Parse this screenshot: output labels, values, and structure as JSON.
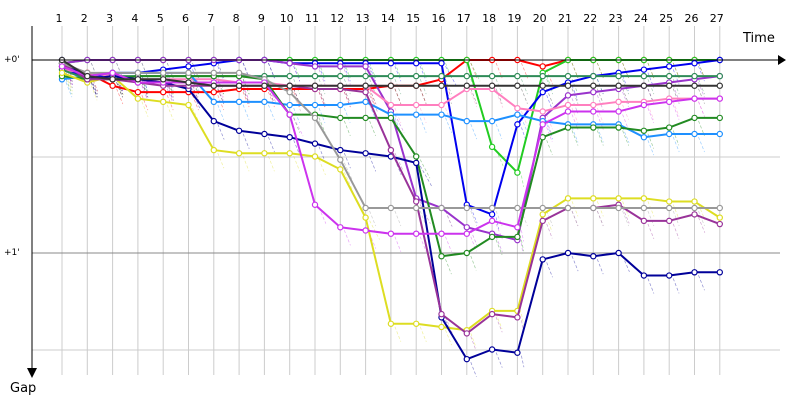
{
  "chart_data": {
    "type": "line",
    "title": "",
    "xlabel": "Time",
    "ylabel": "Gap",
    "x": [
      1,
      2,
      3,
      4,
      5,
      6,
      7,
      8,
      9,
      10,
      11,
      12,
      13,
      14,
      15,
      16,
      17,
      18,
      19,
      20,
      21,
      22,
      23,
      24,
      25,
      26,
      27
    ],
    "x_tick_labels": [
      "1",
      "2",
      "3",
      "4",
      "5",
      "6",
      "7",
      "8",
      "9",
      "10",
      "11",
      "12",
      "13",
      "14",
      "15",
      "16",
      "17",
      "18",
      "19",
      "20",
      "21",
      "22",
      "23",
      "24",
      "25",
      "26",
      "27"
    ],
    "y_tick_labels": [
      "+0'",
      "+1'"
    ],
    "y_ticks": [
      0,
      60
    ],
    "ylim": [
      -2,
      97
    ],
    "y_inverted": true,
    "grid": true,
    "series": [
      {
        "color": "#ff0000",
        "values": [
          2,
          4,
          8,
          10,
          10,
          10,
          10,
          9,
          9,
          9,
          9,
          9,
          9,
          8,
          8,
          6,
          0,
          0,
          0,
          2,
          0,
          0,
          0,
          0,
          0,
          0,
          0
        ]
      },
      {
        "color": "#22cc22",
        "values": [
          1,
          0,
          0,
          0,
          0,
          0,
          0,
          0,
          0,
          0,
          0,
          0,
          0,
          0,
          0,
          0,
          0,
          27,
          35,
          4,
          0,
          0,
          0,
          0,
          0,
          0,
          0
        ]
      },
      {
        "color": "#0000ee",
        "values": [
          2,
          6,
          4,
          4,
          3,
          2,
          1,
          0,
          0,
          1,
          1,
          1,
          1,
          1,
          1,
          1,
          45,
          48,
          20,
          10,
          7,
          5,
          4,
          3,
          2,
          1,
          0
        ]
      },
      {
        "color": "#9933cc",
        "values": [
          1,
          0,
          0,
          0,
          0,
          0,
          0,
          0,
          0,
          1,
          2,
          2,
          2,
          16,
          43,
          46,
          52,
          54,
          56,
          18,
          11,
          10,
          9,
          8,
          7,
          6,
          5
        ]
      },
      {
        "color": "#ff7fbf",
        "values": [
          3,
          4,
          5,
          6,
          6,
          6,
          6,
          7,
          7,
          8,
          8,
          8,
          8,
          14,
          14,
          14,
          9,
          9,
          15,
          16,
          14,
          14,
          13,
          13,
          12,
          12,
          12
        ]
      },
      {
        "color": "#1e90ff",
        "values": [
          6,
          5,
          4,
          4,
          4,
          4,
          13,
          13,
          13,
          14,
          14,
          14,
          13,
          17,
          17,
          17,
          19,
          19,
          17,
          19,
          20,
          20,
          20,
          24,
          23,
          23,
          23
        ]
      },
      {
        "color": "#2e8b57",
        "values": [
          3,
          6,
          5,
          5,
          5,
          5,
          5,
          5,
          5,
          5,
          5,
          5,
          5,
          5,
          5,
          5,
          5,
          5,
          5,
          5,
          5,
          5,
          5,
          5,
          5,
          5,
          5
        ]
      },
      {
        "color": "#228b22",
        "values": [
          5,
          6,
          6,
          5,
          5,
          5,
          5,
          5,
          6,
          17,
          17,
          18,
          18,
          18,
          30,
          61,
          60,
          55,
          55,
          24,
          21,
          21,
          21,
          22,
          21,
          18,
          18
        ]
      },
      {
        "color": "#dddd22",
        "values": [
          4,
          7,
          5,
          12,
          13,
          14,
          28,
          29,
          29,
          29,
          30,
          34,
          49,
          82,
          82,
          83,
          84,
          78,
          78,
          48,
          43,
          43,
          43,
          43,
          44,
          44,
          49
        ]
      },
      {
        "color": "#000099",
        "values": [
          0,
          6,
          5,
          6,
          7,
          9,
          19,
          22,
          23,
          24,
          26,
          28,
          29,
          30,
          32,
          80,
          93,
          90,
          91,
          62,
          60,
          61,
          60,
          67,
          67,
          66,
          66
        ]
      },
      {
        "color": "#993399",
        "values": [
          1,
          6,
          6,
          7,
          8,
          8,
          8,
          8,
          8,
          8,
          9,
          9,
          10,
          28,
          44,
          79,
          85,
          79,
          80,
          50,
          46,
          46,
          45,
          50,
          50,
          48,
          51
        ]
      },
      {
        "color": "#999999",
        "values": [
          1,
          4,
          4,
          4,
          4,
          4,
          4,
          4,
          6,
          10,
          18,
          31,
          46,
          46,
          46,
          46,
          46,
          46,
          46,
          46,
          46,
          46,
          46,
          46,
          46,
          46,
          46
        ]
      },
      {
        "color": "#cc33ee",
        "values": [
          2,
          5,
          4,
          7,
          7,
          7,
          7,
          7,
          7,
          17,
          45,
          52,
          53,
          54,
          54,
          54,
          54,
          50,
          52,
          20,
          16,
          16,
          16,
          14,
          13,
          12,
          12
        ]
      },
      {
        "color": "#333333",
        "values": [
          0,
          5,
          6,
          6,
          6,
          7,
          8,
          8,
          8,
          8,
          8,
          8,
          8,
          8,
          8,
          8,
          8,
          8,
          8,
          8,
          8,
          8,
          8,
          8,
          8,
          8,
          8
        ]
      }
    ]
  }
}
